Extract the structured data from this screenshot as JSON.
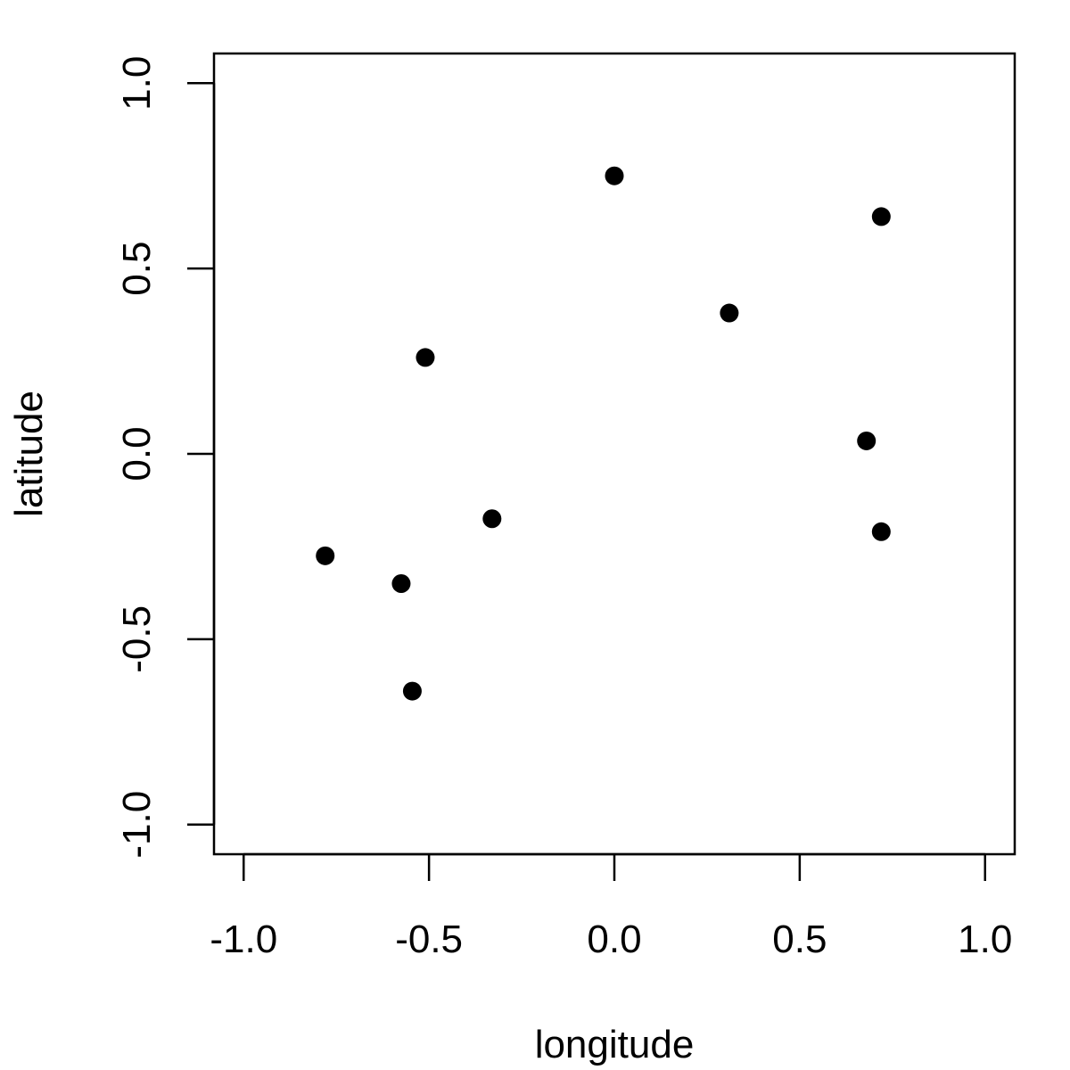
{
  "chart_data": {
    "type": "scatter",
    "title": "",
    "xlabel": "longitude",
    "ylabel": "latitude",
    "xlim": [
      -1.08,
      1.08
    ],
    "ylim": [
      -1.08,
      1.08
    ],
    "xticks": [
      -1.0,
      -0.5,
      0.0,
      0.5,
      1.0
    ],
    "yticks": [
      -1.0,
      -0.5,
      0.0,
      0.5,
      1.0
    ],
    "xtick_labels": [
      "-1.0",
      "-0.5",
      "0.0",
      "0.5",
      "1.0"
    ],
    "ytick_labels": [
      "-1.0",
      "-0.5",
      "0.0",
      "0.5",
      "1.0"
    ],
    "grid": false,
    "legend": "none",
    "marker_color": "#000000",
    "series": [
      {
        "points": [
          {
            "x": 0.0,
            "y": 0.75
          },
          {
            "x": 0.72,
            "y": 0.64
          },
          {
            "x": 0.31,
            "y": 0.38
          },
          {
            "x": -0.51,
            "y": 0.26
          },
          {
            "x": 0.68,
            "y": 0.035
          },
          {
            "x": 0.72,
            "y": -0.21
          },
          {
            "x": -0.33,
            "y": -0.175
          },
          {
            "x": -0.78,
            "y": -0.275
          },
          {
            "x": -0.575,
            "y": -0.35
          },
          {
            "x": -0.545,
            "y": -0.64
          }
        ]
      }
    ]
  }
}
